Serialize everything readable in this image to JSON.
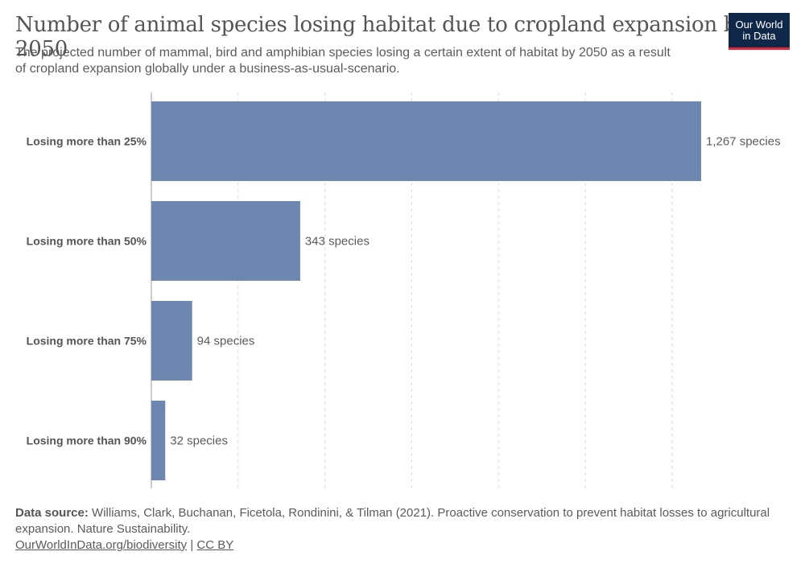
{
  "header": {
    "title": "Number of animal species losing habitat due to cropland expansion by 2050",
    "subtitle": "The projected number of mammal, bird and amphibian species losing a certain extent of habitat by 2050 as a result of cropland expansion globally under a business-as-usual-scenario."
  },
  "logo": {
    "line1": "Our World",
    "line2": "in Data"
  },
  "chart_data": {
    "type": "bar",
    "orientation": "horizontal",
    "categories": [
      "Losing more than 25%",
      "Losing more than 50%",
      "Losing more than 75%",
      "Losing more than 90%"
    ],
    "values": [
      1267,
      343,
      94,
      32
    ],
    "value_labels": [
      "1,267 species",
      "343 species",
      "94 species",
      "32 species"
    ],
    "xlim": [
      0,
      1300
    ],
    "grid": true,
    "bar_color": "#6d87b1"
  },
  "footer": {
    "source_label": "Data source:",
    "source_text": "Williams, Clark, Buchanan, Ficetola, Rondinini, & Tilman (2021). Proactive conservation to prevent habitat losses to agricultural expansion. Nature Sustainability.",
    "link_text": "OurWorldInData.org/biodiversity",
    "separator": "|",
    "license": "CC BY"
  }
}
